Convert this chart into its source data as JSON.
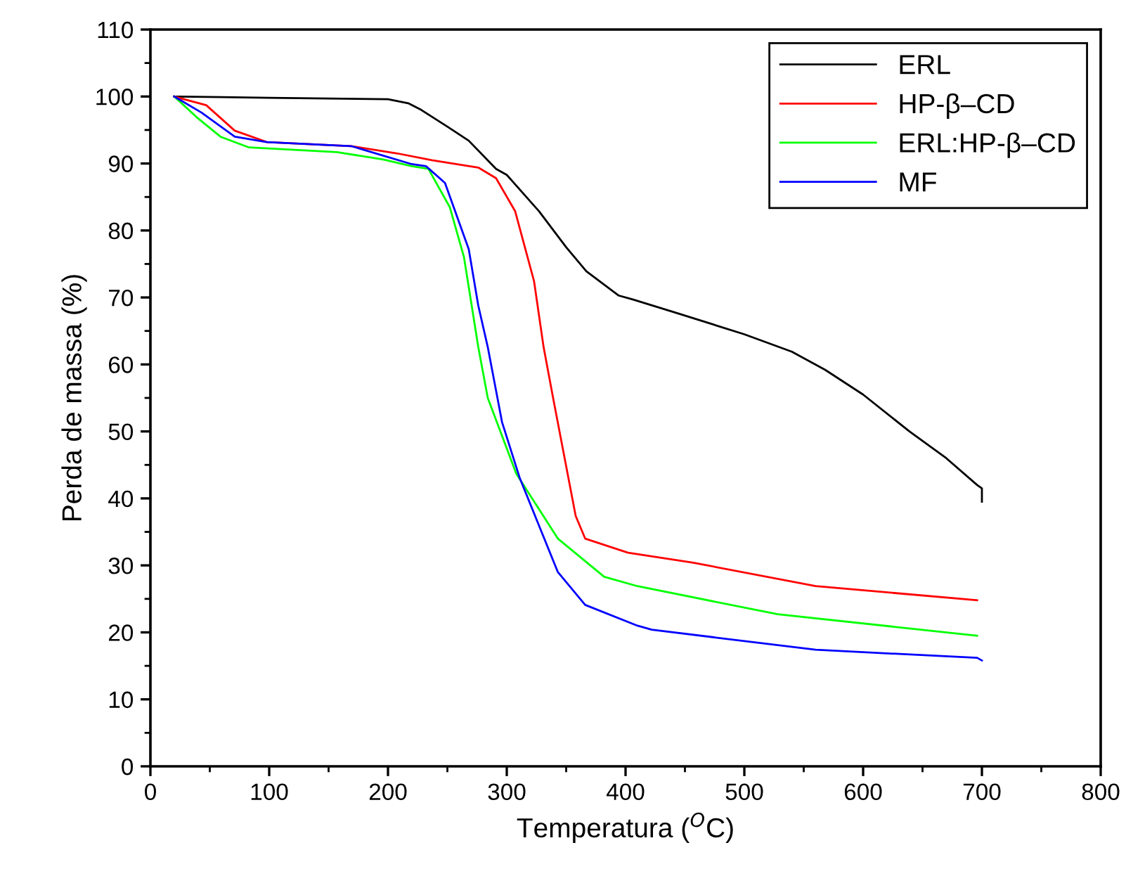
{
  "chart_data": {
    "type": "line",
    "xlabel": "Temperatura ($^{O}$C)",
    "ylabel": "Perda de massa (%)",
    "xlim": [
      0,
      800
    ],
    "ylim": [
      0,
      110
    ],
    "xticks": [
      0,
      100,
      200,
      300,
      400,
      500,
      600,
      700,
      800
    ],
    "yticks": [
      0,
      10,
      20,
      30,
      40,
      50,
      60,
      70,
      80,
      90,
      100,
      110
    ],
    "grid": false,
    "legend": "top right",
    "line_style": "solid",
    "series": [
      {
        "name": "ERL",
        "color": "#000000",
        "x": [
          20,
          60,
          100,
          150,
          200,
          217,
          228,
          250,
          268,
          291,
          300,
          327,
          350,
          367,
          394,
          406,
          441,
          500,
          540,
          568,
          600,
          639,
          670,
          696,
          700,
          700
        ],
        "values": [
          100,
          99.9,
          99.8,
          99.7,
          99.6,
          99.0,
          98.0,
          95.5,
          93.4,
          89.2,
          88.3,
          82.9,
          77.5,
          73.9,
          70.3,
          69.7,
          67.8,
          64.5,
          61.9,
          59.2,
          55.5,
          50,
          46,
          42,
          41.5,
          39.5
        ]
      },
      {
        "name": "HP-β–CD",
        "color": "#ff0000",
        "x": [
          20,
          47,
          71,
          98,
          169,
          208,
          237,
          276,
          291,
          307,
          323,
          331,
          339,
          358,
          366,
          402,
          457,
          560,
          696
        ],
        "values": [
          100,
          98.7,
          94.9,
          93.2,
          92.6,
          91.5,
          90.5,
          89.4,
          87.8,
          82.9,
          72.4,
          62.6,
          55,
          37.4,
          34,
          31.9,
          30.4,
          26.9,
          24.8
        ]
      },
      {
        "name": "ERL:HP-β–CD",
        "color": "#00ff00",
        "x": [
          20,
          39,
          59,
          83,
          157,
          196,
          220,
          234,
          252,
          264,
          276,
          284,
          308,
          343,
          382,
          410,
          528,
          696
        ],
        "values": [
          100,
          96.9,
          94,
          92.4,
          91.7,
          90.6,
          89.6,
          89.2,
          83.5,
          76,
          62.6,
          55,
          43.7,
          34,
          28.3,
          26.9,
          22.7,
          19.5
        ]
      },
      {
        "name": "MF",
        "color": "#0000ff",
        "x": [
          20,
          43,
          71,
          98,
          169,
          220,
          232,
          248,
          268,
          276,
          284,
          296,
          311,
          343,
          366,
          410,
          422,
          560,
          696,
          700
        ],
        "values": [
          100,
          97.6,
          94,
          93.2,
          92.6,
          89.9,
          89.6,
          87.1,
          77.2,
          68.8,
          62.6,
          51.4,
          43,
          29,
          24.1,
          21,
          20.4,
          17.4,
          16.2,
          15.8
        ]
      }
    ]
  }
}
